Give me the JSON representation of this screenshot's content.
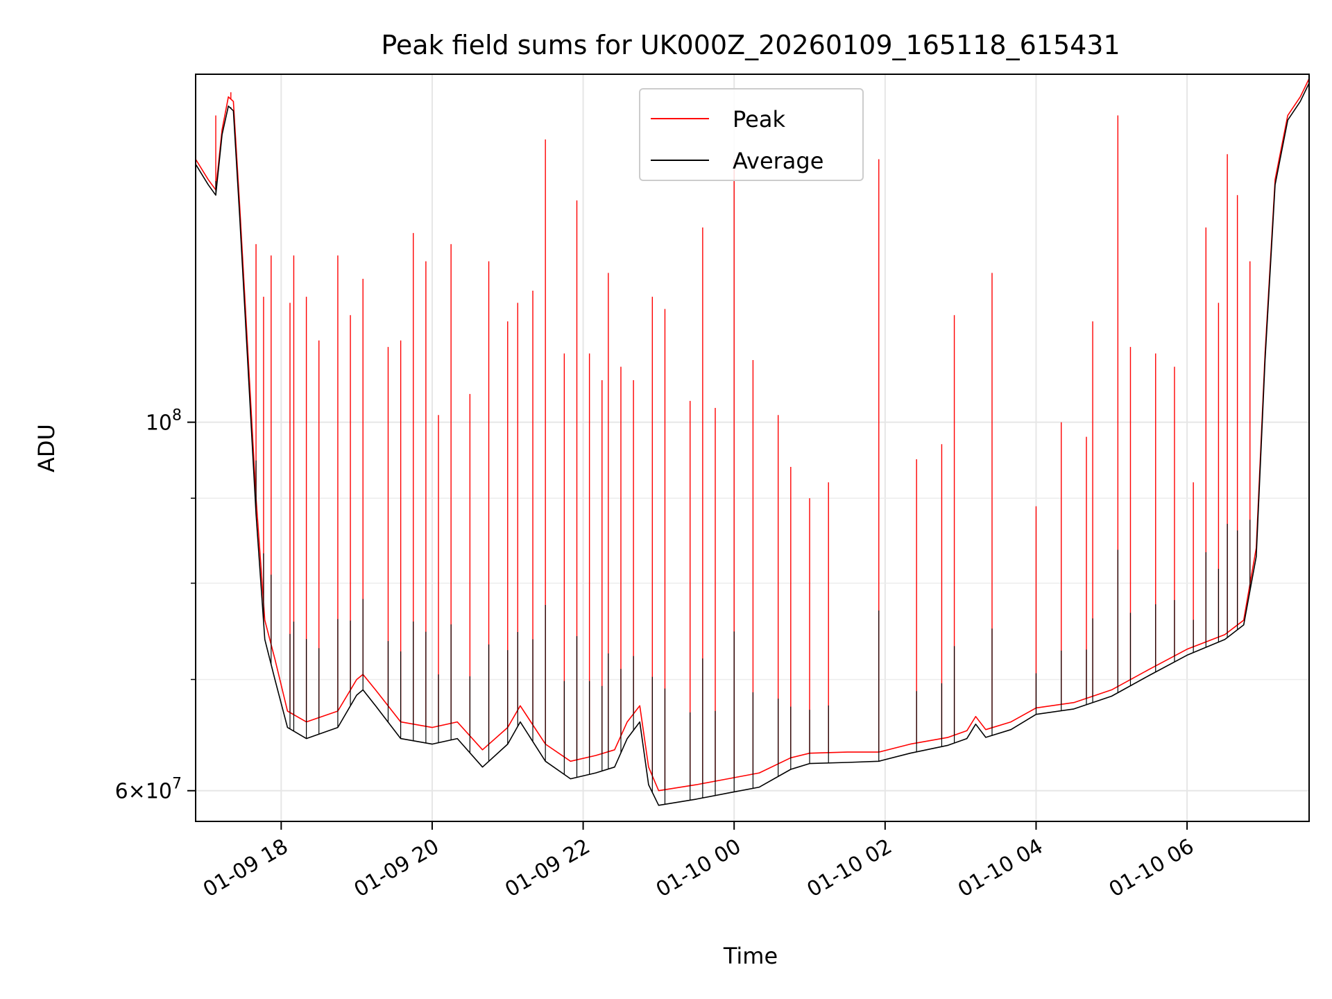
{
  "chart_data": {
    "type": "line",
    "title": "Peak field sums for UK000Z_20260109_165118_615431",
    "xlabel": "Time",
    "ylabel": "ADU",
    "y_scale": "log",
    "ylim": [
      57500000,
      162000000
    ],
    "xlim": [
      "2026-01-09T16:52",
      "2026-01-10T07:37"
    ],
    "grid": true,
    "legend_position": "top-center",
    "x_ticks": [
      {
        "t": "2026-01-09T18:00",
        "label": "01-09 18"
      },
      {
        "t": "2026-01-09T20:00",
        "label": "01-09 20"
      },
      {
        "t": "2026-01-09T22:00",
        "label": "01-09 22"
      },
      {
        "t": "2026-01-10T00:00",
        "label": "01-10 00"
      },
      {
        "t": "2026-01-10T02:00",
        "label": "01-10 02"
      },
      {
        "t": "2026-01-10T04:00",
        "label": "01-10 04"
      },
      {
        "t": "2026-01-10T06:00",
        "label": "01-10 06"
      }
    ],
    "y_ticks": [
      {
        "value": 100000000,
        "base": "10",
        "exp": "8"
      },
      {
        "value": 60000000,
        "mant": "6",
        "base": "10",
        "exp": "7"
      }
    ],
    "y_minor_ticks": [
      70000000,
      80000000,
      90000000
    ],
    "series": [
      {
        "name": "Peak",
        "color": "#ff0000",
        "points": [
          [
            "2026-01-09T16:52",
            144000000
          ],
          [
            "2026-01-09T17:02",
            140000000
          ],
          [
            "2026-01-09T17:08",
            138000000
          ],
          [
            "2026-01-09T17:13",
            150000000
          ],
          [
            "2026-01-09T17:18",
            157000000
          ],
          [
            "2026-01-09T17:22",
            156000000
          ],
          [
            "2026-01-09T17:27",
            135000000
          ],
          [
            "2026-01-09T17:33",
            112000000
          ],
          [
            "2026-01-09T17:40",
            90000000
          ],
          [
            "2026-01-09T17:47",
            76000000
          ],
          [
            "2026-01-09T17:55",
            72000000
          ],
          [
            "2026-01-09T18:05",
            67000000
          ],
          [
            "2026-01-09T18:20",
            66000000
          ],
          [
            "2026-01-09T18:45",
            67000000
          ],
          [
            "2026-01-09T19:00",
            70000000
          ],
          [
            "2026-01-09T19:05",
            70500000
          ],
          [
            "2026-01-09T19:15",
            69000000
          ],
          [
            "2026-01-09T19:35",
            66000000
          ],
          [
            "2026-01-09T20:00",
            65500000
          ],
          [
            "2026-01-09T20:20",
            66000000
          ],
          [
            "2026-01-09T20:40",
            63500000
          ],
          [
            "2026-01-09T21:00",
            65500000
          ],
          [
            "2026-01-09T21:10",
            67500000
          ],
          [
            "2026-01-09T21:30",
            64000000
          ],
          [
            "2026-01-09T21:50",
            62500000
          ],
          [
            "2026-01-09T22:10",
            63000000
          ],
          [
            "2026-01-09T22:25",
            63500000
          ],
          [
            "2026-01-09T22:35",
            66000000
          ],
          [
            "2026-01-09T22:45",
            67500000
          ],
          [
            "2026-01-09T22:52",
            62000000
          ],
          [
            "2026-01-09T23:00",
            60000000
          ],
          [
            "2026-01-09T23:30",
            60500000
          ],
          [
            "2026-01-09T23:55",
            61000000
          ],
          [
            "2026-01-10T00:20",
            61500000
          ],
          [
            "2026-01-10T00:45",
            62800000
          ],
          [
            "2026-01-10T01:00",
            63200000
          ],
          [
            "2026-01-10T01:30",
            63300000
          ],
          [
            "2026-01-10T01:55",
            63300000
          ],
          [
            "2026-01-10T02:20",
            64000000
          ],
          [
            "2026-01-10T02:50",
            64600000
          ],
          [
            "2026-01-10T03:05",
            65200000
          ],
          [
            "2026-01-10T03:12",
            66500000
          ],
          [
            "2026-01-10T03:20",
            65300000
          ],
          [
            "2026-01-10T03:40",
            66000000
          ],
          [
            "2026-01-10T04:00",
            67300000
          ],
          [
            "2026-01-10T04:30",
            67800000
          ],
          [
            "2026-01-10T05:00",
            69000000
          ],
          [
            "2026-01-10T05:30",
            71000000
          ],
          [
            "2026-01-10T06:00",
            73000000
          ],
          [
            "2026-01-10T06:30",
            74500000
          ],
          [
            "2026-01-10T06:45",
            76000000
          ],
          [
            "2026-01-10T06:55",
            84000000
          ],
          [
            "2026-01-10T07:02",
            110000000
          ],
          [
            "2026-01-10T07:10",
            140000000
          ],
          [
            "2026-01-10T07:20",
            153000000
          ],
          [
            "2026-01-10T07:30",
            157000000
          ],
          [
            "2026-01-10T07:37",
            161000000
          ]
        ],
        "spikes": [
          [
            "2026-01-09T17:08",
            153000000
          ],
          [
            "2026-01-09T17:20",
            158000000
          ],
          [
            "2026-01-09T17:40",
            128000000
          ],
          [
            "2026-01-09T17:46",
            119000000
          ],
          [
            "2026-01-09T17:52",
            126000000
          ],
          [
            "2026-01-09T18:07",
            118000000
          ],
          [
            "2026-01-09T18:10",
            126000000
          ],
          [
            "2026-01-09T18:20",
            119000000
          ],
          [
            "2026-01-09T18:30",
            112000000
          ],
          [
            "2026-01-09T18:45",
            126000000
          ],
          [
            "2026-01-09T18:55",
            116000000
          ],
          [
            "2026-01-09T19:05",
            122000000
          ],
          [
            "2026-01-09T19:25",
            111000000
          ],
          [
            "2026-01-09T19:35",
            112000000
          ],
          [
            "2026-01-09T19:45",
            130000000
          ],
          [
            "2026-01-09T19:55",
            125000000
          ],
          [
            "2026-01-09T20:05",
            101000000
          ],
          [
            "2026-01-09T20:15",
            128000000
          ],
          [
            "2026-01-09T20:30",
            104000000
          ],
          [
            "2026-01-09T20:45",
            125000000
          ],
          [
            "2026-01-09T21:00",
            115000000
          ],
          [
            "2026-01-09T21:08",
            118000000
          ],
          [
            "2026-01-09T21:20",
            120000000
          ],
          [
            "2026-01-09T21:30",
            148000000
          ],
          [
            "2026-01-09T21:45",
            110000000
          ],
          [
            "2026-01-09T21:55",
            136000000
          ],
          [
            "2026-01-09T22:05",
            110000000
          ],
          [
            "2026-01-09T22:15",
            106000000
          ],
          [
            "2026-01-09T22:20",
            123000000
          ],
          [
            "2026-01-09T22:30",
            108000000
          ],
          [
            "2026-01-09T22:40",
            106000000
          ],
          [
            "2026-01-09T22:55",
            119000000
          ],
          [
            "2026-01-09T23:05",
            117000000
          ],
          [
            "2026-01-09T23:25",
            103000000
          ],
          [
            "2026-01-09T23:35",
            131000000
          ],
          [
            "2026-01-09T23:45",
            102000000
          ],
          [
            "2026-01-10T00:00",
            144000000
          ],
          [
            "2026-01-10T00:15",
            109000000
          ],
          [
            "2026-01-10T00:35",
            101000000
          ],
          [
            "2026-01-10T00:45",
            94000000
          ],
          [
            "2026-01-10T01:00",
            90000000
          ],
          [
            "2026-01-10T01:15",
            92000000
          ],
          [
            "2026-01-10T01:55",
            144000000
          ],
          [
            "2026-01-10T02:25",
            95000000
          ],
          [
            "2026-01-10T02:45",
            97000000
          ],
          [
            "2026-01-10T02:55",
            116000000
          ],
          [
            "2026-01-10T03:25",
            123000000
          ],
          [
            "2026-01-10T04:00",
            89000000
          ],
          [
            "2026-01-10T04:20",
            100000000
          ],
          [
            "2026-01-10T04:40",
            98000000
          ],
          [
            "2026-01-10T04:45",
            115000000
          ],
          [
            "2026-01-10T05:05",
            153000000
          ],
          [
            "2026-01-10T05:15",
            111000000
          ],
          [
            "2026-01-10T05:35",
            110000000
          ],
          [
            "2026-01-10T05:50",
            108000000
          ],
          [
            "2026-01-10T06:05",
            92000000
          ],
          [
            "2026-01-10T06:15",
            131000000
          ],
          [
            "2026-01-10T06:25",
            118000000
          ],
          [
            "2026-01-10T06:32",
            145000000
          ],
          [
            "2026-01-10T06:40",
            137000000
          ],
          [
            "2026-01-10T06:50",
            125000000
          ]
        ]
      },
      {
        "name": "Average",
        "color": "#000000",
        "points": [
          [
            "2026-01-09T16:52",
            143000000
          ],
          [
            "2026-01-09T17:02",
            139000000
          ],
          [
            "2026-01-09T17:08",
            137000000
          ],
          [
            "2026-01-09T17:13",
            149000000
          ],
          [
            "2026-01-09T17:18",
            155000000
          ],
          [
            "2026-01-09T17:22",
            154000000
          ],
          [
            "2026-01-09T17:27",
            133000000
          ],
          [
            "2026-01-09T17:33",
            110000000
          ],
          [
            "2026-01-09T17:40",
            88000000
          ],
          [
            "2026-01-09T17:47",
            74000000
          ],
          [
            "2026-01-09T17:55",
            70000000
          ],
          [
            "2026-01-09T18:05",
            65500000
          ],
          [
            "2026-01-09T18:20",
            64500000
          ],
          [
            "2026-01-09T18:45",
            65500000
          ],
          [
            "2026-01-09T19:00",
            68500000
          ],
          [
            "2026-01-09T19:05",
            69000000
          ],
          [
            "2026-01-09T19:15",
            67500000
          ],
          [
            "2026-01-09T19:35",
            64500000
          ],
          [
            "2026-01-09T20:00",
            64000000
          ],
          [
            "2026-01-09T20:20",
            64500000
          ],
          [
            "2026-01-09T20:40",
            62000000
          ],
          [
            "2026-01-09T21:00",
            64000000
          ],
          [
            "2026-01-09T21:10",
            66000000
          ],
          [
            "2026-01-09T21:30",
            62500000
          ],
          [
            "2026-01-09T21:50",
            61000000
          ],
          [
            "2026-01-09T22:10",
            61500000
          ],
          [
            "2026-01-09T22:25",
            62000000
          ],
          [
            "2026-01-09T22:35",
            64500000
          ],
          [
            "2026-01-09T22:45",
            66000000
          ],
          [
            "2026-01-09T22:52",
            60500000
          ],
          [
            "2026-01-09T23:00",
            58800000
          ],
          [
            "2026-01-09T23:30",
            59300000
          ],
          [
            "2026-01-09T23:55",
            59800000
          ],
          [
            "2026-01-10T00:20",
            60300000
          ],
          [
            "2026-01-10T00:45",
            61800000
          ],
          [
            "2026-01-10T01:00",
            62300000
          ],
          [
            "2026-01-10T01:30",
            62400000
          ],
          [
            "2026-01-10T01:55",
            62500000
          ],
          [
            "2026-01-10T02:20",
            63200000
          ],
          [
            "2026-01-10T02:50",
            63900000
          ],
          [
            "2026-01-10T03:05",
            64500000
          ],
          [
            "2026-01-10T03:12",
            65800000
          ],
          [
            "2026-01-10T03:20",
            64600000
          ],
          [
            "2026-01-10T03:40",
            65300000
          ],
          [
            "2026-01-10T04:00",
            66700000
          ],
          [
            "2026-01-10T04:30",
            67200000
          ],
          [
            "2026-01-10T05:00",
            68400000
          ],
          [
            "2026-01-10T05:30",
            70400000
          ],
          [
            "2026-01-10T06:00",
            72400000
          ],
          [
            "2026-01-10T06:30",
            74000000
          ],
          [
            "2026-01-10T06:45",
            75500000
          ],
          [
            "2026-01-10T06:55",
            83000000
          ],
          [
            "2026-01-10T07:02",
            109000000
          ],
          [
            "2026-01-10T07:10",
            139000000
          ],
          [
            "2026-01-10T07:20",
            152000000
          ],
          [
            "2026-01-10T07:30",
            156000000
          ],
          [
            "2026-01-10T07:37",
            160000000
          ]
        ]
      }
    ]
  }
}
